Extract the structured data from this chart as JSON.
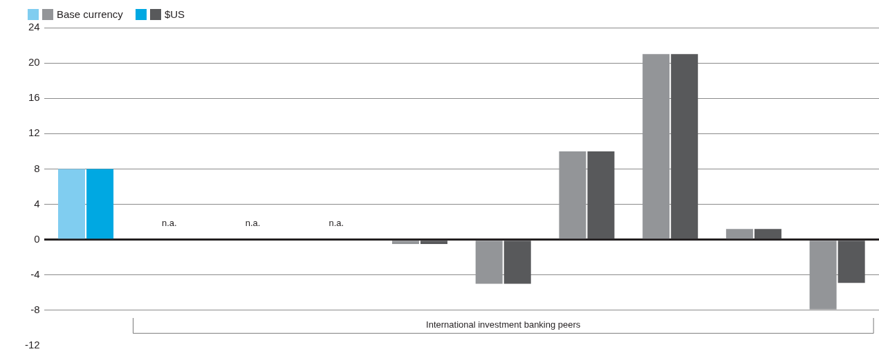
{
  "chart_data": {
    "type": "bar",
    "categories": [
      null,
      null,
      null,
      null,
      null,
      null,
      null,
      null,
      null,
      null
    ],
    "series": [
      {
        "name": "Base currency",
        "colors": [
          "#80cdf0",
          "#939598",
          "#939598",
          "#939598",
          "#939598",
          "#939598",
          "#939598",
          "#939598",
          "#939598",
          "#939598"
        ],
        "values": [
          8,
          null,
          null,
          null,
          -0.5,
          -5,
          10,
          21,
          1.2,
          -7.9
        ],
        "value_labels": [
          null,
          "n.a.",
          "n.a.",
          "n.a.",
          null,
          null,
          null,
          null,
          null,
          null
        ]
      },
      {
        "name": "$US",
        "colors": [
          "#00a8e2",
          "#58595b",
          "#58595b",
          "#58595b",
          "#58595b",
          "#58595b",
          "#58595b",
          "#58595b",
          "#58595b",
          "#58595b"
        ],
        "values": [
          8,
          null,
          null,
          null,
          -0.5,
          -5,
          10,
          21,
          1.2,
          -4.9
        ]
      }
    ],
    "ylim": [
      -12,
      24
    ],
    "yticks": [
      -12,
      -8,
      -4,
      0,
      4,
      8,
      12,
      16,
      20,
      24
    ],
    "grid": "y",
    "legend": "top left",
    "annotations": [
      "International investment banking peers"
    ]
  }
}
